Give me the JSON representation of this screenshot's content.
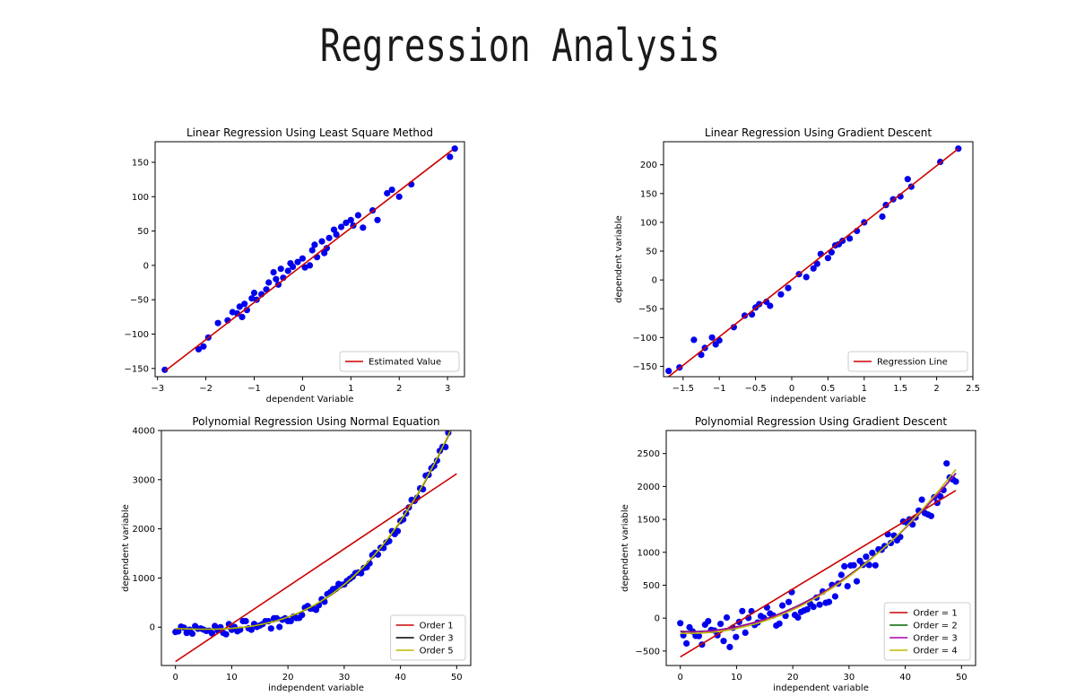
{
  "page": {
    "title": "Regression Analysis"
  },
  "chart_data": [
    {
      "type": "scatter",
      "title": "Linear Regression Using Least Square Method",
      "xlabel": "dependent Variable",
      "ylabel": "",
      "xlim": [
        -3.05,
        3.35
      ],
      "ylim": [
        -162,
        180
      ],
      "xticks": [
        -3,
        -2,
        -1,
        0,
        1,
        2,
        3
      ],
      "yticks": [
        -150,
        -100,
        -50,
        0,
        50,
        100,
        150
      ],
      "legend": {
        "position": "lower-right",
        "entries": [
          {
            "label": "Estimated Value",
            "color": "#cc0000"
          }
        ]
      },
      "series": [
        {
          "name": "data",
          "kind": "scatter",
          "color": "#0000ee",
          "x": [
            -2.85,
            -2.15,
            -2.05,
            -1.95,
            -1.75,
            -1.55,
            -1.45,
            -1.35,
            -1.3,
            -1.25,
            -1.2,
            -1.15,
            -1.05,
            -1.0,
            -0.95,
            -0.85,
            -0.75,
            -0.7,
            -0.6,
            -0.55,
            -0.5,
            -0.45,
            -0.4,
            -0.3,
            -0.25,
            -0.2,
            -0.1,
            0.0,
            0.05,
            0.15,
            0.2,
            0.25,
            0.3,
            0.4,
            0.45,
            0.5,
            0.55,
            0.65,
            0.7,
            0.8,
            0.9,
            1.0,
            1.05,
            1.15,
            1.25,
            1.45,
            1.55,
            1.75,
            1.85,
            2.0,
            2.25,
            3.05,
            3.15
          ],
          "y": [
            -152,
            -122,
            -118,
            -105,
            -84,
            -80,
            -68,
            -70,
            -60,
            -75,
            -56,
            -65,
            -48,
            -40,
            -50,
            -42,
            -35,
            -25,
            -10,
            -20,
            -28,
            -5,
            -18,
            -8,
            3,
            -2,
            5,
            10,
            -3,
            0,
            22,
            30,
            12,
            35,
            18,
            25,
            40,
            52,
            45,
            56,
            62,
            66,
            58,
            73,
            55,
            80,
            66,
            105,
            110,
            100,
            118,
            158,
            170
          ]
        },
        {
          "name": "Estimated Value",
          "kind": "line",
          "color": "#cc0000",
          "x": [
            -2.85,
            3.1
          ],
          "y": [
            -154,
            168
          ]
        }
      ]
    },
    {
      "type": "scatter",
      "title": "Linear Regression Using Gradient Descent",
      "xlabel": "independent variable",
      "ylabel": "dependent variable",
      "xlim": [
        -1.77,
        2.5
      ],
      "ylim": [
        -168,
        240
      ],
      "xticks": [
        -1.5,
        -1.0,
        -0.5,
        0.0,
        0.5,
        1.0,
        1.5,
        2.0,
        2.5
      ],
      "yticks": [
        -150,
        -100,
        -50,
        0,
        50,
        100,
        150,
        200
      ],
      "legend": {
        "position": "lower-right",
        "entries": [
          {
            "label": "Regression Line",
            "color": "#cc0000"
          }
        ]
      },
      "series": [
        {
          "name": "data",
          "kind": "scatter",
          "color": "#0000ee",
          "x": [
            -1.7,
            -1.55,
            -1.35,
            -1.25,
            -1.2,
            -1.1,
            -1.05,
            -1.0,
            -0.8,
            -0.65,
            -0.55,
            -0.5,
            -0.45,
            -0.35,
            -0.3,
            -0.15,
            -0.05,
            0.1,
            0.2,
            0.3,
            0.35,
            0.4,
            0.5,
            0.55,
            0.6,
            0.65,
            0.7,
            0.8,
            0.9,
            1.0,
            1.25,
            1.3,
            1.4,
            1.5,
            1.6,
            1.65,
            2.05,
            2.3
          ],
          "y": [
            -158,
            -152,
            -104,
            -130,
            -118,
            -100,
            -112,
            -105,
            -82,
            -62,
            -60,
            -48,
            -42,
            -38,
            -45,
            -25,
            -14,
            10,
            5,
            20,
            28,
            45,
            38,
            48,
            60,
            62,
            68,
            72,
            85,
            100,
            110,
            130,
            140,
            145,
            175,
            162,
            205,
            228
          ]
        },
        {
          "name": "Regression Line",
          "kind": "line",
          "color": "#cc0000",
          "x": [
            -1.7,
            2.3
          ],
          "y": [
            -168,
            228
          ]
        }
      ]
    },
    {
      "type": "scatter",
      "title": "Polynomial Regression Using Normal Equation",
      "xlabel": "independent variable",
      "ylabel": "dependent variable",
      "xlim": [
        -2.5,
        52.5
      ],
      "ylim": [
        -780,
        4000
      ],
      "xticks": [
        0,
        10,
        20,
        30,
        40,
        50
      ],
      "yticks": [
        0,
        1000,
        2000,
        3000,
        4000
      ],
      "legend": {
        "position": "lower-right",
        "entries": [
          {
            "label": "Order 1",
            "color": "#cc0000"
          },
          {
            "label": "Order 3",
            "color": "#000000"
          },
          {
            "label": "Order 5",
            "color": "#bbbb00"
          }
        ]
      },
      "series": [
        {
          "name": "data",
          "kind": "scatter",
          "color": "#0000ee",
          "gen": "poly",
          "n": 101,
          "x0": 0,
          "x1": 50,
          "a": 0.034,
          "b": 0.1,
          "c": -4,
          "d": -30,
          "noise": 90,
          "seed": 7
        },
        {
          "name": "Order 1",
          "kind": "line",
          "color": "#cc0000",
          "x": [
            0,
            50
          ],
          "y": [
            -700,
            3120
          ]
        },
        {
          "name": "Order 3",
          "kind": "curve",
          "color": "#000000",
          "x0": 0,
          "x1": 50,
          "a": 0.034,
          "b": 0.1,
          "c": -4,
          "d": -30
        },
        {
          "name": "Order 5",
          "kind": "curve",
          "color": "#bbbb00",
          "x0": 0,
          "x1": 50,
          "a": 0.0338,
          "b": 0.12,
          "c": -4.2,
          "d": -28
        }
      ]
    },
    {
      "type": "scatter",
      "title": "Polynomial Regression Using Gradient Descent",
      "xlabel": "independent variable",
      "ylabel": "dependent variable",
      "xlim": [
        -2.5,
        52.5
      ],
      "ylim": [
        -720,
        2850
      ],
      "xticks": [
        0,
        10,
        20,
        30,
        40,
        50
      ],
      "yticks": [
        -500,
        0,
        500,
        1000,
        1500,
        2000,
        2500
      ],
      "legend": {
        "position": "lower-right",
        "entries": [
          {
            "label": "Order = 1",
            "color": "#cc0000"
          },
          {
            "label": "Order = 2",
            "color": "#006600"
          },
          {
            "label": "Order = 3",
            "color": "#aa00aa"
          },
          {
            "label": "Order = 4",
            "color": "#bbbb00"
          }
        ]
      },
      "series": [
        {
          "name": "data",
          "kind": "scatter",
          "color": "#0000ee",
          "gen": "poly",
          "n": 90,
          "x0": 0,
          "x1": 49,
          "a": 0.0,
          "b": 1.08,
          "c": -4,
          "d": -200,
          "noise": 190,
          "seed": 13
        },
        {
          "name": "Order = 1",
          "kind": "line",
          "color": "#cc0000",
          "x": [
            0,
            49
          ],
          "y": [
            -590,
            1940
          ]
        },
        {
          "name": "Order = 2",
          "kind": "curve",
          "color": "#006600",
          "x0": 0,
          "x1": 49,
          "a": 0.0,
          "b": 1.08,
          "c": -4,
          "d": -200
        },
        {
          "name": "Order = 3",
          "kind": "curve",
          "color": "#aa00aa",
          "x0": 0,
          "x1": 49,
          "a": 0.0005,
          "b": 1.05,
          "c": -3.5,
          "d": -205
        },
        {
          "name": "Order = 4",
          "kind": "curve",
          "color": "#bbbb00",
          "x0": 0,
          "x1": 49,
          "a": 0.002,
          "b": 1.0,
          "c": -3,
          "d": -230
        }
      ]
    }
  ]
}
